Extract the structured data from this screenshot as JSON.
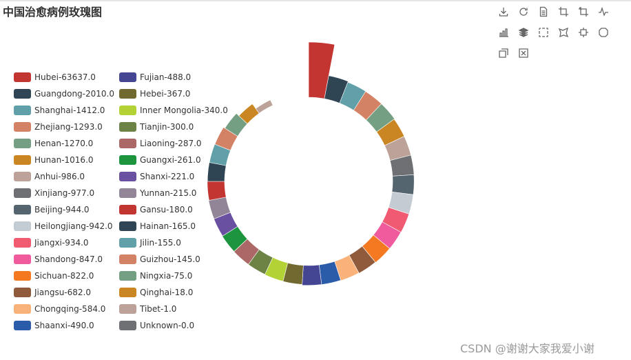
{
  "title": "中国治愈病例玫瑰图",
  "watermark": "CSDN @谢谢大家我爱小谢",
  "toolbox": [
    {
      "name": "download-icon",
      "tip": "save-as-image"
    },
    {
      "name": "refresh-icon",
      "tip": "restore"
    },
    {
      "name": "document-icon",
      "tip": "data-view"
    },
    {
      "name": "crop-icon",
      "tip": "data-zoom"
    },
    {
      "name": "undo-icon",
      "tip": "zoom-back"
    },
    {
      "name": "line-chart-icon",
      "tip": "line"
    },
    {
      "name": "bar-chart-icon",
      "tip": "bar"
    },
    {
      "name": "stack-icon",
      "tip": "stack"
    },
    {
      "name": "rect-select-icon",
      "tip": "rect"
    },
    {
      "name": "lasso-icon",
      "tip": "polygon"
    },
    {
      "name": "keep-select-icon",
      "tip": "keep"
    },
    {
      "name": "clear-select-icon",
      "tip": "clear"
    },
    {
      "name": "brush-icon",
      "tip": "brush"
    },
    {
      "name": "close-select-icon",
      "tip": "clear-brush"
    }
  ],
  "chart_data": {
    "type": "pie",
    "rose_type": "radius",
    "title": "中国治愈病例玫瑰图",
    "legend_position": "left",
    "slices": [
      {
        "name": "Hubei",
        "label": "Hubei-63637.0",
        "value": 63637.0,
        "color": "#c23531"
      },
      {
        "name": "Guangdong",
        "label": "Guangdong-2010.0",
        "value": 2010.0,
        "color": "#2f4554"
      },
      {
        "name": "Shanghai",
        "label": "Shanghai-1412.0",
        "value": 1412.0,
        "color": "#61a0a8"
      },
      {
        "name": "Zhejiang",
        "label": "Zhejiang-1293.0",
        "value": 1293.0,
        "color": "#d48265"
      },
      {
        "name": "Henan",
        "label": "Henan-1270.0",
        "value": 1270.0,
        "color": "#749f83"
      },
      {
        "name": "Hunan",
        "label": "Hunan-1016.0",
        "value": 1016.0,
        "color": "#ca8622"
      },
      {
        "name": "Anhui",
        "label": "Anhui-986.0",
        "value": 986.0,
        "color": "#bda29a"
      },
      {
        "name": "Xinjiang",
        "label": "Xinjiang-977.0",
        "value": 977.0,
        "color": "#6e7074"
      },
      {
        "name": "Beijing",
        "label": "Beijing-944.0",
        "value": 944.0,
        "color": "#546570"
      },
      {
        "name": "Heilongjiang",
        "label": "Heilongjiang-942.0",
        "value": 942.0,
        "color": "#c4ccd3"
      },
      {
        "name": "Jiangxi",
        "label": "Jiangxi-934.0",
        "value": 934.0,
        "color": "#f05b72"
      },
      {
        "name": "Shandong",
        "label": "Shandong-847.0",
        "value": 847.0,
        "color": "#ef5b9c"
      },
      {
        "name": "Sichuan",
        "label": "Sichuan-822.0",
        "value": 822.0,
        "color": "#f47920"
      },
      {
        "name": "Jiangsu",
        "label": "Jiangsu-682.0",
        "value": 682.0,
        "color": "#905a3d"
      },
      {
        "name": "Chongqing",
        "label": "Chongqing-584.0",
        "value": 584.0,
        "color": "#fab27b"
      },
      {
        "name": "Shaanxi",
        "label": "Shaanxi-490.0",
        "value": 490.0,
        "color": "#2a5caa"
      },
      {
        "name": "Fujian",
        "label": "Fujian-488.0",
        "value": 488.0,
        "color": "#444693"
      },
      {
        "name": "Hebei",
        "label": "Hebei-367.0",
        "value": 367.0,
        "color": "#726930"
      },
      {
        "name": "Inner Mongolia",
        "label": "Inner Mongolia-340.0",
        "value": 340.0,
        "color": "#b2d235"
      },
      {
        "name": "Tianjin",
        "label": "Tianjin-300.0",
        "value": 300.0,
        "color": "#6d8346"
      },
      {
        "name": "Liaoning",
        "label": "Liaoning-287.0",
        "value": 287.0,
        "color": "#ac6767"
      },
      {
        "name": "Guangxi",
        "label": "Guangxi-261.0",
        "value": 261.0,
        "color": "#1d953f"
      },
      {
        "name": "Shanxi",
        "label": "Shanxi-221.0",
        "value": 221.0,
        "color": "#6950a1"
      },
      {
        "name": "Yunnan",
        "label": "Yunnan-215.0",
        "value": 215.0,
        "color": "#918597"
      },
      {
        "name": "Gansu",
        "label": "Gansu-180.0",
        "value": 180.0,
        "color": "#c23531"
      },
      {
        "name": "Hainan",
        "label": "Hainan-165.0",
        "value": 165.0,
        "color": "#2f4554"
      },
      {
        "name": "Jilin",
        "label": "Jilin-155.0",
        "value": 155.0,
        "color": "#61a0a8"
      },
      {
        "name": "Guizhou",
        "label": "Guizhou-145.0",
        "value": 145.0,
        "color": "#d48265"
      },
      {
        "name": "Ningxia",
        "label": "Ningxia-75.0",
        "value": 75.0,
        "color": "#749f83"
      },
      {
        "name": "Qinghai",
        "label": "Qinghai-18.0",
        "value": 18.0,
        "color": "#ca8622"
      },
      {
        "name": "Tibet",
        "label": "Tibet-1.0",
        "value": 1.0,
        "color": "#bda29a"
      },
      {
        "name": "Unknown",
        "label": "Unknown-0.0",
        "value": 0.0,
        "color": "#6e7074"
      }
    ]
  }
}
